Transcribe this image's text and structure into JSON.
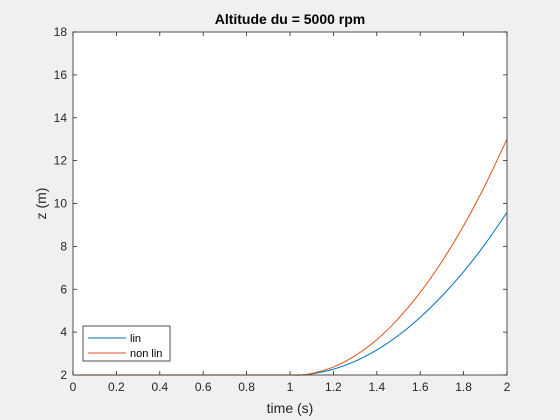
{
  "chart_data": {
    "type": "line",
    "title": "Altitude du = 5000 rpm",
    "xlabel": "time (s)",
    "ylabel": "z (m)",
    "xlim": [
      0,
      2
    ],
    "ylim": [
      2,
      18
    ],
    "xticks": [
      0,
      0.2,
      0.4,
      0.6,
      0.8,
      1,
      1.2,
      1.4,
      1.6,
      1.8,
      2
    ],
    "yticks": [
      2,
      4,
      6,
      8,
      10,
      12,
      14,
      16,
      18
    ],
    "grid": false,
    "legend_position": "bottom-left",
    "series": [
      {
        "name": "lin",
        "color": "#0072BD",
        "x": [
          0,
          0.2,
          0.4,
          0.6,
          0.8,
          1.0,
          1.05,
          1.1,
          1.2,
          1.3,
          1.4,
          1.5,
          1.6,
          1.7,
          1.8,
          1.9,
          2.0
        ],
        "y": [
          2,
          2,
          2,
          2,
          2,
          2,
          2.0,
          2.05,
          2.27,
          2.64,
          3.17,
          3.85,
          4.69,
          5.68,
          6.82,
          8.12,
          9.58
        ]
      },
      {
        "name": "non lin",
        "color": "#D95319",
        "x": [
          0,
          0.2,
          0.4,
          0.6,
          0.8,
          1.0,
          1.05,
          1.1,
          1.2,
          1.3,
          1.4,
          1.5,
          1.6,
          1.7,
          1.8,
          1.9,
          2.0
        ],
        "y": [
          2,
          2,
          2,
          2,
          2,
          2,
          2.0,
          2.07,
          2.37,
          2.9,
          3.65,
          4.64,
          5.85,
          7.29,
          8.96,
          10.87,
          13.0
        ]
      }
    ]
  }
}
